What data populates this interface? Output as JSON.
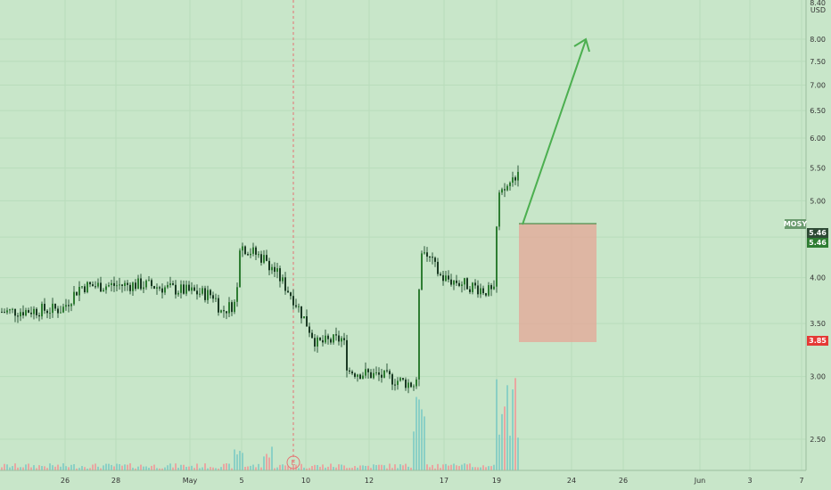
{
  "chart_data": {
    "type": "candlestick",
    "symbol": "MOSY",
    "currency": "USD",
    "y_scale": "log",
    "ylim": [
      2.3,
      8.3
    ],
    "y_ticks": [
      "8.00",
      "7.50",
      "7.00",
      "6.50",
      "6.00",
      "5.50",
      "5.00",
      "4.50",
      "4.00",
      "3.50",
      "3.00",
      "2.50"
    ],
    "y_top_label": "8.40",
    "x_ticks": [
      "26",
      "28",
      "May",
      "5",
      "10",
      "12",
      "17",
      "19",
      "24",
      "26",
      "Jun",
      "3",
      "7"
    ],
    "last_price": "5.46",
    "last_price_2": "5.46",
    "stop_price": "3.85",
    "earnings_marker": "E",
    "colors": {
      "background": "#c8e6c9",
      "up": "#26a69a",
      "down": "#ef5350",
      "candle_body": "#2e5a3c",
      "arrow": "#4caf50",
      "risk_box": "#e6a696",
      "last_price_badge": "#2e7d32",
      "stop_badge": "#e53935",
      "symbol_badge": "#6b9b6f"
    },
    "segments": [
      {
        "from": "26",
        "open": 3.62,
        "to": "May",
        "close": 3.85
      },
      {
        "from": "5",
        "open": 4.4,
        "to": "10",
        "close": 3.3
      },
      {
        "from": "12",
        "open": 3.0,
        "to": "17",
        "close": 4.0
      },
      {
        "from": "19",
        "open": 5.1,
        "to": "19",
        "close": 5.46
      }
    ]
  }
}
